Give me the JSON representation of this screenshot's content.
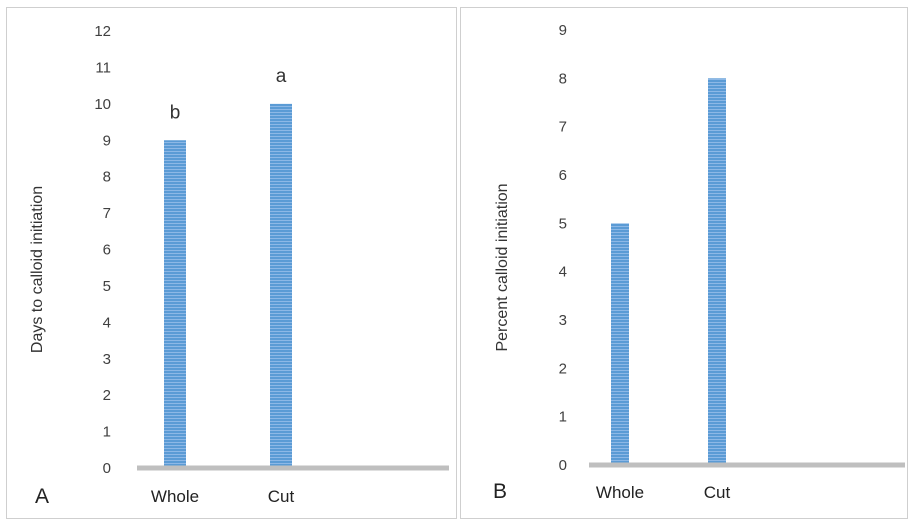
{
  "chart_data": [
    {
      "type": "bar",
      "panel_label": "A",
      "categories": [
        "Whole",
        "Cut"
      ],
      "values": [
        9,
        10
      ],
      "annotations": [
        "b",
        "a"
      ],
      "ylabel": "Days to calloid initiation",
      "ylim": [
        0,
        12
      ],
      "yticks": [
        "0",
        "1",
        "2",
        "3",
        "4",
        "5",
        "6",
        "7",
        "8",
        "9",
        "10",
        "11",
        "12"
      ],
      "grid": false,
      "bar_color": "#5b9bd5"
    },
    {
      "type": "bar",
      "panel_label": "B",
      "categories": [
        "Whole",
        "Cut"
      ],
      "values": [
        5,
        8
      ],
      "ylabel": "Percent calloid initiation",
      "ylim": [
        0,
        9
      ],
      "yticks": [
        "0",
        "1",
        "2",
        "3",
        "4",
        "5",
        "6",
        "7",
        "8",
        "9"
      ],
      "grid": false,
      "bar_color": "#5b9bd5"
    }
  ]
}
